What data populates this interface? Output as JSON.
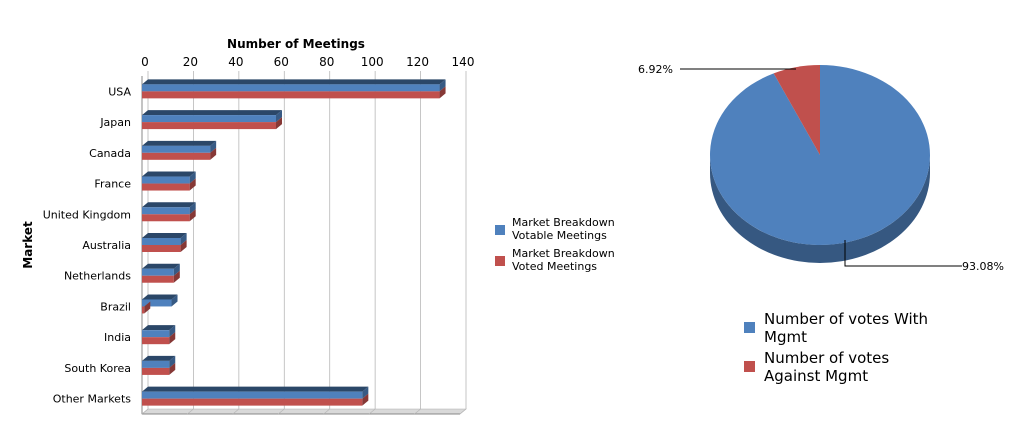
{
  "chart_data": [
    {
      "type": "bar",
      "orientation": "horizontal",
      "title": "Number of Meetings",
      "xlabel": "Number of Meetings",
      "ylabel": "Market",
      "xlim": [
        0,
        140
      ],
      "x_ticks": [
        "0",
        "20",
        "40",
        "60",
        "80",
        "100",
        "120",
        "140"
      ],
      "categories": [
        "USA",
        "Japan",
        "Canada",
        "France",
        "United Kingdom",
        "Australia",
        "Netherlands",
        "Brazil",
        "India",
        "South Korea",
        "Other Markets"
      ],
      "series": [
        {
          "name": "Market Breakdown Votable Meetings",
          "color": "#4f81bd",
          "values": [
            131,
            59,
            30,
            21,
            21,
            17,
            14,
            13,
            12,
            12,
            97
          ]
        },
        {
          "name": "Market Breakdown Voted Meetings",
          "color": "#c0504d",
          "values": [
            131,
            59,
            30,
            21,
            21,
            17,
            14,
            1,
            12,
            12,
            97
          ]
        }
      ],
      "legend_labels": [
        [
          "Market Breakdown",
          "Votable Meetings"
        ],
        [
          "Market Breakdown",
          "Voted Meetings"
        ]
      ],
      "grid": true,
      "legend_position": "right"
    },
    {
      "type": "pie",
      "slices": [
        {
          "name": "Number of votes With Mgmt",
          "value": 93.08,
          "label": "93.08%",
          "color": "#4f81bd"
        },
        {
          "name": "Number of votes Against Mgmt",
          "value": 6.92,
          "label": "6.92%",
          "color": "#c0504d"
        }
      ],
      "legend_labels": [
        [
          "Number of votes With",
          "Mgmt"
        ],
        [
          "Number of votes",
          "Against Mgmt"
        ]
      ],
      "legend_position": "bottom"
    }
  ]
}
